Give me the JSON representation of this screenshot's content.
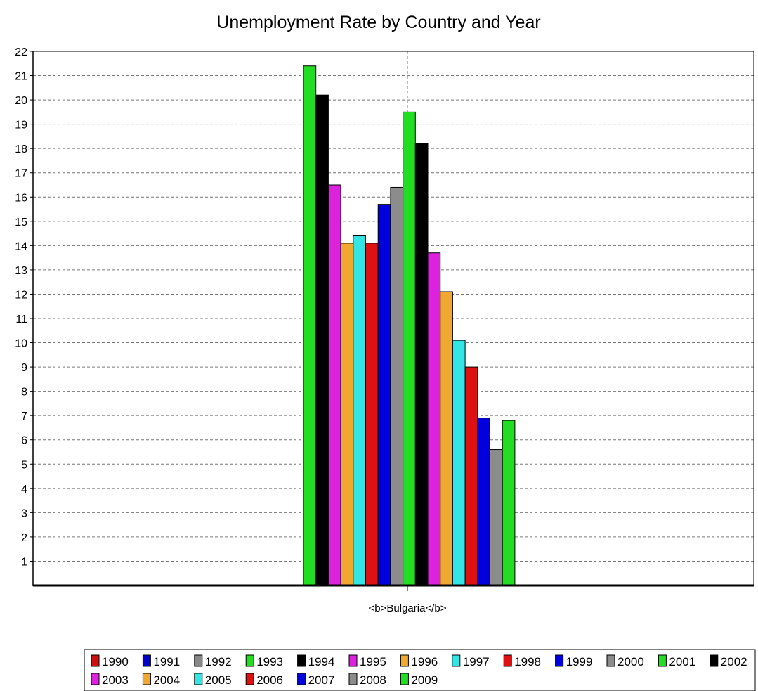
{
  "chart_data": {
    "type": "bar",
    "title": "Unemployment Rate by Country and Year",
    "categories": [
      "<b>Bulgaria</b>"
    ],
    "xlabel": "",
    "ylabel": "",
    "ylim": [
      0,
      22
    ],
    "y_ticks": [
      1,
      2,
      3,
      4,
      5,
      6,
      7,
      8,
      9,
      10,
      11,
      12,
      13,
      14,
      15,
      16,
      17,
      18,
      19,
      20,
      21,
      22
    ],
    "grid": true,
    "legend_position": "bottom",
    "series": [
      {
        "name": "1990",
        "color": "#cc1111",
        "values": [
          null
        ]
      },
      {
        "name": "1991",
        "color": "#0000cc",
        "values": [
          null
        ]
      },
      {
        "name": "1992",
        "color": "#888888",
        "values": [
          null
        ]
      },
      {
        "name": "1993",
        "color": "#22dd22",
        "values": [
          21.4
        ]
      },
      {
        "name": "1994",
        "color": "#000000",
        "values": [
          20.2
        ]
      },
      {
        "name": "1995",
        "color": "#dd22dd",
        "values": [
          16.5
        ]
      },
      {
        "name": "1996",
        "color": "#f0a830",
        "values": [
          14.1
        ]
      },
      {
        "name": "1997",
        "color": "#33e6e6",
        "values": [
          14.4
        ]
      },
      {
        "name": "1998",
        "color": "#dd1111",
        "values": [
          14.1
        ]
      },
      {
        "name": "1999",
        "color": "#0000dd",
        "values": [
          15.7
        ]
      },
      {
        "name": "2000",
        "color": "#8c8c8c",
        "values": [
          16.4
        ]
      },
      {
        "name": "2001",
        "color": "#22dd22",
        "values": [
          19.5
        ]
      },
      {
        "name": "2002",
        "color": "#000000",
        "values": [
          18.2
        ]
      },
      {
        "name": "2003",
        "color": "#dd22dd",
        "values": [
          13.7
        ]
      },
      {
        "name": "2004",
        "color": "#f0a830",
        "values": [
          12.1
        ]
      },
      {
        "name": "2005",
        "color": "#33e6e6",
        "values": [
          10.1
        ]
      },
      {
        "name": "2006",
        "color": "#dd1111",
        "values": [
          9.0
        ]
      },
      {
        "name": "2007",
        "color": "#0000dd",
        "values": [
          6.9
        ]
      },
      {
        "name": "2008",
        "color": "#8c8c8c",
        "values": [
          5.6
        ]
      },
      {
        "name": "2009",
        "color": "#22dd22",
        "values": [
          6.8
        ]
      }
    ]
  }
}
